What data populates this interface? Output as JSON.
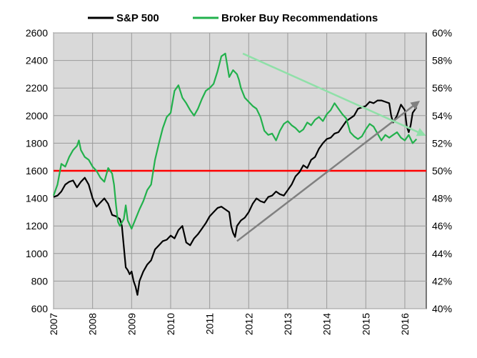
{
  "chart_data": {
    "type": "line",
    "legend_position": "top",
    "grid": true,
    "x_ticks": [
      "2007",
      "2008",
      "2009",
      "2010",
      "2011",
      "2012",
      "2013",
      "2014",
      "2015",
      "2016"
    ],
    "x_range": [
      2007.0,
      2016.55
    ],
    "y_left_ticks": [
      "2600",
      "2400",
      "2200",
      "2000",
      "1800",
      "1600",
      "1400",
      "1200",
      "1000",
      "800",
      "600"
    ],
    "y_left_range": [
      600,
      2600
    ],
    "y_right_ticks": [
      "60%",
      "58%",
      "56%",
      "54%",
      "52%",
      "50%",
      "48%",
      "46%",
      "44%",
      "42%",
      "40%"
    ],
    "y_right_range": [
      40,
      60
    ],
    "colors": {
      "sp500": "#000000",
      "broker": "#22b14c",
      "reference": "#ff0000",
      "trend_sp500": "#808080",
      "trend_broker": "#8fe0a8",
      "plot_bg": "#d9d9d9",
      "grid": "#9a9a9a"
    },
    "series": [
      {
        "name": "S&P 500",
        "axis": "left",
        "x": [
          2007.0,
          2007.1,
          2007.2,
          2007.3,
          2007.4,
          2007.5,
          2007.6,
          2007.7,
          2007.8,
          2007.9,
          2008.0,
          2008.1,
          2008.2,
          2008.3,
          2008.4,
          2008.5,
          2008.6,
          2008.7,
          2008.75,
          2008.8,
          2008.85,
          2008.9,
          2008.95,
          2009.0,
          2009.05,
          2009.1,
          2009.15,
          2009.2,
          2009.3,
          2009.4,
          2009.5,
          2009.6,
          2009.7,
          2009.8,
          2009.9,
          2010.0,
          2010.1,
          2010.2,
          2010.3,
          2010.4,
          2010.5,
          2010.6,
          2010.7,
          2010.8,
          2010.9,
          2011.0,
          2011.1,
          2011.2,
          2011.3,
          2011.4,
          2011.5,
          2011.55,
          2011.6,
          2011.65,
          2011.7,
          2011.8,
          2011.9,
          2012.0,
          2012.1,
          2012.2,
          2012.3,
          2012.4,
          2012.5,
          2012.6,
          2012.7,
          2012.8,
          2012.9,
          2013.0,
          2013.1,
          2013.2,
          2013.3,
          2013.4,
          2013.5,
          2013.6,
          2013.7,
          2013.8,
          2013.9,
          2014.0,
          2014.1,
          2014.2,
          2014.3,
          2014.4,
          2014.5,
          2014.6,
          2014.7,
          2014.8,
          2014.9,
          2015.0,
          2015.1,
          2015.2,
          2015.3,
          2015.4,
          2015.5,
          2015.6,
          2015.65,
          2015.7,
          2015.8,
          2015.9,
          2016.0,
          2016.05,
          2016.1,
          2016.15,
          2016.2,
          2016.3
        ],
        "values": [
          1410,
          1420,
          1450,
          1500,
          1520,
          1530,
          1480,
          1520,
          1550,
          1500,
          1400,
          1340,
          1370,
          1400,
          1360,
          1280,
          1270,
          1250,
          1200,
          1050,
          900,
          880,
          850,
          870,
          800,
          760,
          700,
          800,
          870,
          920,
          950,
          1030,
          1060,
          1090,
          1100,
          1130,
          1110,
          1170,
          1200,
          1080,
          1060,
          1110,
          1140,
          1180,
          1220,
          1270,
          1300,
          1330,
          1340,
          1320,
          1300,
          1200,
          1150,
          1120,
          1200,
          1240,
          1260,
          1300,
          1360,
          1400,
          1380,
          1370,
          1410,
          1420,
          1450,
          1430,
          1420,
          1460,
          1500,
          1560,
          1590,
          1640,
          1620,
          1680,
          1700,
          1760,
          1800,
          1830,
          1840,
          1870,
          1880,
          1920,
          1960,
          1980,
          2000,
          2050,
          2060,
          2070,
          2100,
          2090,
          2110,
          2110,
          2100,
          2090,
          2000,
          1950,
          2000,
          2080,
          2040,
          1920,
          1880,
          1930,
          2020,
          2060
        ]
      },
      {
        "name": "Broker Buy Recommendations",
        "axis": "right",
        "x": [
          2007.0,
          2007.1,
          2007.2,
          2007.3,
          2007.4,
          2007.5,
          2007.6,
          2007.65,
          2007.7,
          2007.8,
          2007.9,
          2008.0,
          2008.1,
          2008.2,
          2008.3,
          2008.4,
          2008.5,
          2008.55,
          2008.6,
          2008.65,
          2008.7,
          2008.8,
          2008.85,
          2008.9,
          2009.0,
          2009.1,
          2009.2,
          2009.3,
          2009.4,
          2009.5,
          2009.6,
          2009.7,
          2009.8,
          2009.9,
          2010.0,
          2010.1,
          2010.2,
          2010.3,
          2010.4,
          2010.5,
          2010.6,
          2010.7,
          2010.8,
          2010.9,
          2011.0,
          2011.1,
          2011.2,
          2011.3,
          2011.4,
          2011.5,
          2011.6,
          2011.7,
          2011.75,
          2011.8,
          2011.9,
          2012.0,
          2012.1,
          2012.2,
          2012.3,
          2012.4,
          2012.5,
          2012.6,
          2012.7,
          2012.8,
          2012.9,
          2013.0,
          2013.1,
          2013.2,
          2013.3,
          2013.4,
          2013.5,
          2013.6,
          2013.7,
          2013.8,
          2013.9,
          2014.0,
          2014.1,
          2014.2,
          2014.3,
          2014.4,
          2014.5,
          2014.6,
          2014.7,
          2014.8,
          2014.9,
          2015.0,
          2015.1,
          2015.2,
          2015.3,
          2015.4,
          2015.5,
          2015.6,
          2015.7,
          2015.8,
          2015.9,
          2016.0,
          2016.1,
          2016.2,
          2016.3
        ],
        "values": [
          48.2,
          49.0,
          50.5,
          50.3,
          51.0,
          51.5,
          51.8,
          52.2,
          51.5,
          51.0,
          50.8,
          50.3,
          50.0,
          49.5,
          49.2,
          50.2,
          49.8,
          49.0,
          47.5,
          46.3,
          46.0,
          46.5,
          47.5,
          46.4,
          45.8,
          46.5,
          47.2,
          47.8,
          48.6,
          49.0,
          50.8,
          52.0,
          53.1,
          53.9,
          54.2,
          55.8,
          56.2,
          55.3,
          54.9,
          54.4,
          54.0,
          54.5,
          55.2,
          55.8,
          56.0,
          56.3,
          57.2,
          58.3,
          58.5,
          56.8,
          57.3,
          57.0,
          56.6,
          56.0,
          55.3,
          55.0,
          54.7,
          54.5,
          53.9,
          52.9,
          52.6,
          52.7,
          52.2,
          52.9,
          53.4,
          53.6,
          53.3,
          53.1,
          52.8,
          53.0,
          53.5,
          53.3,
          53.7,
          53.9,
          53.6,
          54.1,
          54.4,
          54.9,
          54.5,
          54.1,
          53.8,
          52.8,
          52.5,
          52.3,
          52.5,
          53.0,
          53.4,
          53.2,
          52.7,
          52.2,
          52.6,
          52.4,
          52.6,
          52.8,
          52.4,
          52.2,
          52.6,
          52.0,
          52.3
        ]
      }
    ],
    "reference_line": {
      "axis": "right",
      "value": 50
    },
    "trend_lines": [
      {
        "series": "S&P 500",
        "axis": "left",
        "from": [
          2011.7,
          1090
        ],
        "to": [
          2016.35,
          2100
        ]
      },
      {
        "series": "Broker Buy Recommendations",
        "axis": "right",
        "from": [
          2011.85,
          58.5
        ],
        "to": [
          2016.5,
          52.6
        ]
      }
    ]
  }
}
